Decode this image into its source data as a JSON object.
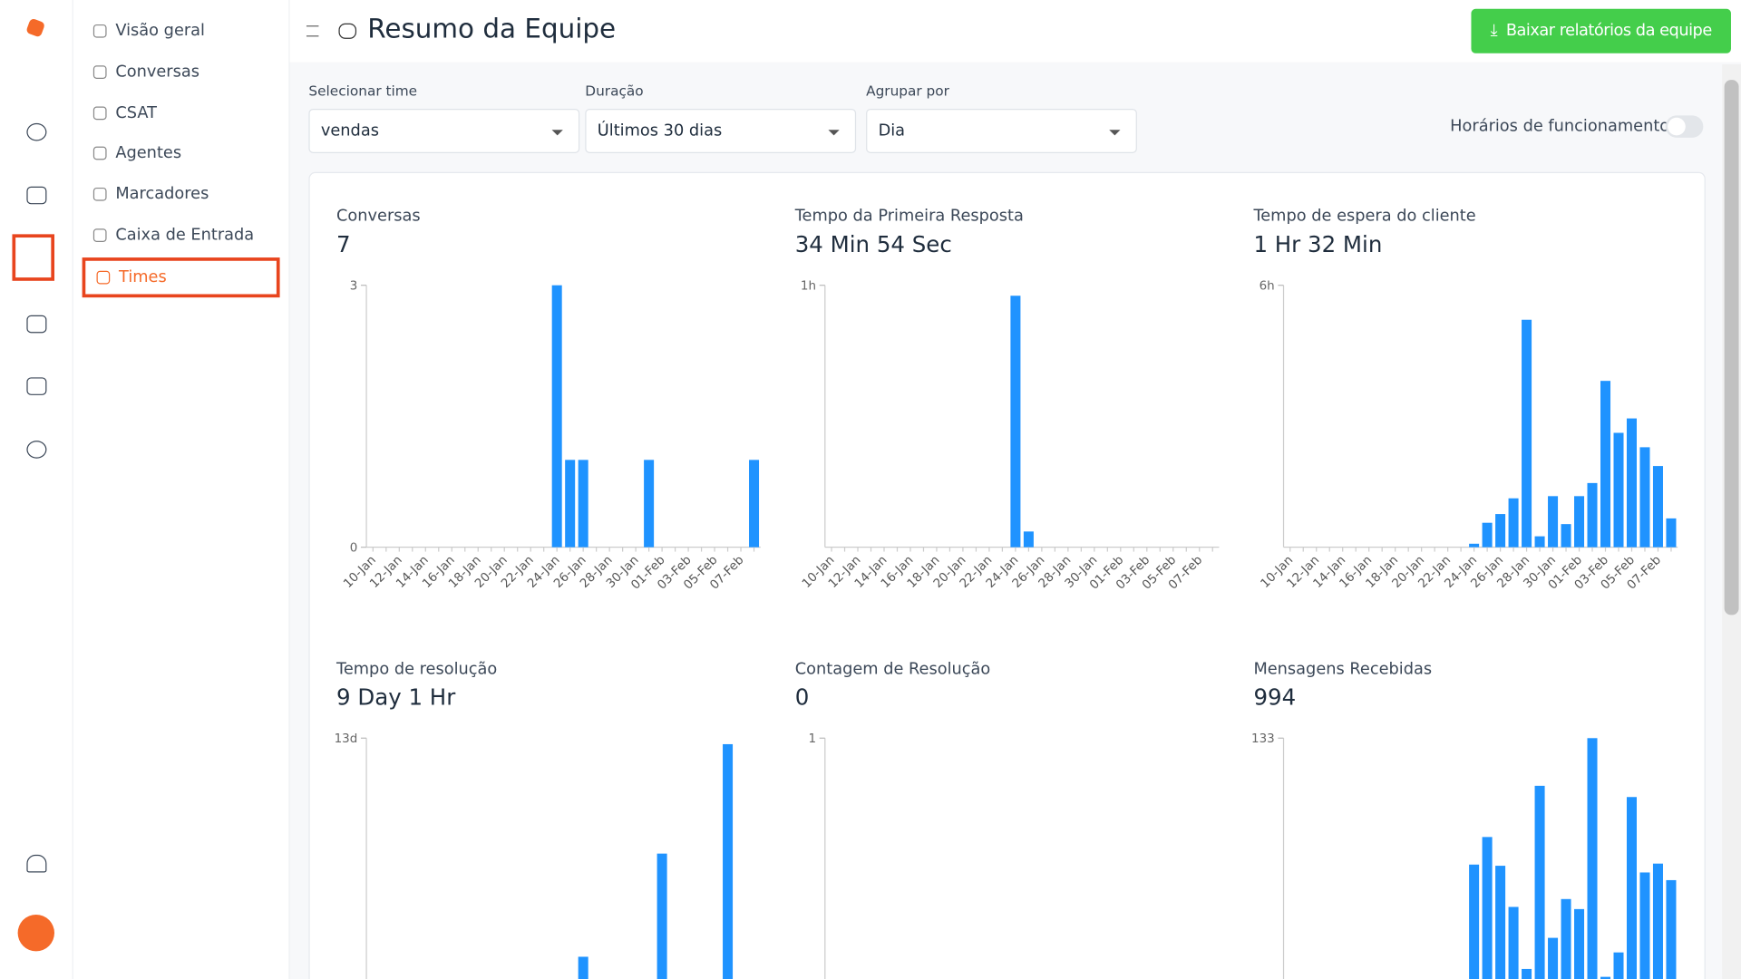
{
  "sidebar": {
    "items": [
      "Visão geral",
      "Conversas",
      "CSAT",
      "Agentes",
      "Marcadores",
      "Caixa de Entrada",
      "Times"
    ],
    "active": 6
  },
  "header": {
    "title": "Resumo da Equipe",
    "button": "Baixar relatórios da equipe"
  },
  "filters": [
    {
      "label": "Selecionar time",
      "value": "vendas"
    },
    {
      "label": "Duração",
      "value": "Últimos 30 dias"
    },
    {
      "label": "Agrupar por",
      "value": "Dia"
    }
  ],
  "toggle": {
    "label": "Horários de funcionamento",
    "on": false
  },
  "categories": [
    "10-Jan",
    null,
    "12-Jan",
    null,
    "14-Jan",
    null,
    "16-Jan",
    null,
    "18-Jan",
    null,
    "20-Jan",
    null,
    "22-Jan",
    null,
    "24-Jan",
    null,
    "26-Jan",
    null,
    "28-Jan",
    null,
    "30-Jan",
    null,
    "01-Feb",
    null,
    "03-Feb",
    null,
    "05-Feb",
    null,
    "07-Feb",
    null
  ],
  "charts": [
    {
      "type": "bar",
      "title": "Conversas",
      "total": "7",
      "color": "#1f93ff",
      "ylim": [
        0,
        3
      ],
      "yticks": [
        0,
        3
      ],
      "values": [
        0,
        0,
        0,
        0,
        0,
        0,
        0,
        0,
        0,
        0,
        0,
        0,
        0,
        0,
        3,
        1,
        1,
        0,
        0,
        0,
        0,
        1,
        0,
        0,
        0,
        0,
        0,
        0,
        0,
        1
      ]
    },
    {
      "type": "bar",
      "title": "Tempo da Primeira Resposta",
      "total": "34 Min 54 Sec",
      "color": "#1f93ff",
      "ylim": [
        0,
        1
      ],
      "yticks": [
        {
          "value": 1,
          "label": "1h"
        }
      ],
      "values": [
        0,
        0,
        0,
        0,
        0,
        0,
        0,
        0,
        0,
        0,
        0,
        0,
        0,
        0,
        0.96,
        0.06,
        0,
        0,
        0,
        0,
        0,
        0,
        0,
        0,
        0,
        0,
        0,
        0,
        0,
        0
      ]
    },
    {
      "type": "bar",
      "title": "Tempo de espera do cliente",
      "total": "1 Hr 32 Min",
      "color": "#1f93ff",
      "ylim": [
        0,
        6
      ],
      "yticks": [
        {
          "value": 6,
          "label": "6h"
        }
      ],
      "values": [
        0,
        0,
        0,
        0,
        0,
        0,
        0,
        0,
        0,
        0,
        0,
        0,
        0,
        0,
        0.08,
        0.56,
        0.76,
        1.12,
        5.21,
        0.25,
        1.17,
        0.53,
        1.17,
        1.47,
        3.81,
        2.62,
        2.95,
        2.29,
        1.86,
        0.66
      ]
    },
    {
      "type": "bar",
      "title": "Tempo de resolução",
      "total": "9 Day 1 Hr",
      "color": "#1f93ff",
      "ylim": [
        0,
        13
      ],
      "yticks": [
        {
          "value": 13,
          "label": "13d"
        }
      ],
      "values": [
        0,
        0,
        0,
        0,
        0,
        0,
        0,
        0,
        0,
        0,
        0,
        0,
        0,
        0,
        0,
        0,
        2.15,
        0,
        0,
        0,
        0,
        0,
        7.27,
        0,
        0,
        0,
        0,
        12.7,
        0,
        0
      ]
    },
    {
      "type": "bar",
      "title": "Contagem de Resolução",
      "total": "0",
      "color": "#1f93ff",
      "ylim": [
        0,
        1
      ],
      "yticks": [
        1
      ],
      "values": [
        0,
        0,
        0,
        0,
        0,
        0,
        0,
        0,
        0,
        0,
        0,
        0,
        0,
        0,
        0,
        0,
        0,
        0,
        0,
        0,
        0,
        0,
        0,
        0,
        0,
        0,
        0,
        0,
        0,
        0
      ]
    },
    {
      "type": "bar",
      "title": "Mensagens Recebidas",
      "total": "994",
      "color": "#1f93ff",
      "ylim": [
        0,
        133
      ],
      "yticks": [
        133
      ],
      "values": [
        0,
        0,
        0,
        0,
        0,
        0,
        0,
        0,
        0,
        0,
        0,
        0,
        0,
        0,
        68.8,
        82.8,
        68.2,
        47.3,
        15.8,
        108.8,
        31.6,
        51.3,
        46.2,
        133,
        11.8,
        24.2,
        103.1,
        64.8,
        69.3,
        60.9
      ]
    }
  ]
}
